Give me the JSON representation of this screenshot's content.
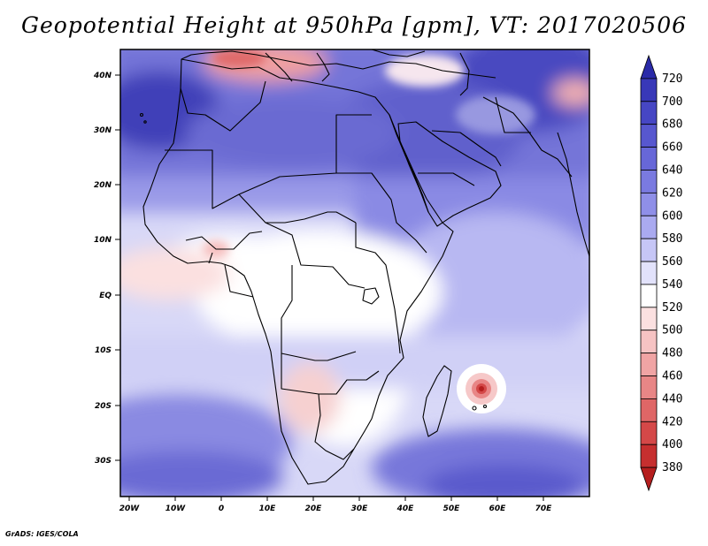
{
  "title": "Geopotential Height at 950hPa [gpm], VT: 2017020506",
  "credit": "GrADS: IGES/COLA",
  "map": {
    "lat_labels": [
      "40N",
      "30N",
      "20N",
      "10N",
      "EQ",
      "10S",
      "20S",
      "30S"
    ],
    "lon_labels": [
      "20W",
      "10W",
      "0",
      "10E",
      "20E",
      "30E",
      "40E",
      "50E",
      "60E",
      "70E"
    ]
  },
  "colorbar": {
    "labels": [
      "720",
      "700",
      "680",
      "660",
      "640",
      "620",
      "600",
      "580",
      "560",
      "540",
      "520",
      "500",
      "480",
      "460",
      "440",
      "420",
      "400",
      "380"
    ],
    "colors": [
      "#2a2aa8",
      "#3838b8",
      "#4646c4",
      "#5757cf",
      "#6767d8",
      "#7a7ae0",
      "#8f8fe8",
      "#aaaaf0",
      "#c6c6f6",
      "#e2e2fb",
      "#ffffff",
      "#fbe0e0",
      "#f6c3c3",
      "#f0a4a4",
      "#e88686",
      "#df6666",
      "#d44848",
      "#c62f2f",
      "#b51e1e"
    ]
  }
}
